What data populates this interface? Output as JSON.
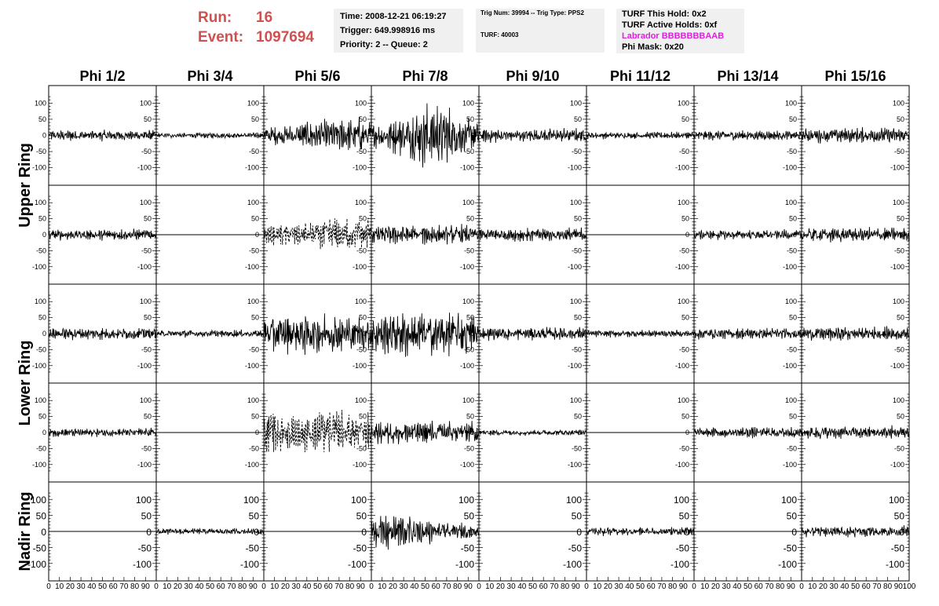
{
  "header": {
    "run_label": "Run:",
    "run_value": "16",
    "event_label": "Event:",
    "event_value": "1097694",
    "time": "Time: 2008-12-21 06:19:27",
    "trigger": "Trigger: 649.998916 ms",
    "priority": "Priority: 2 -- Queue: 2",
    "trig_num": "Trig Num: 39994 -- Trig Type: PPS2",
    "turf": "TURF: 40003",
    "turf_hold": "TURF This Hold: 0x2",
    "turf_active": "TURF Active Holds: 0xf",
    "labrador": "Labrador BBBBBBBAAB",
    "phi_mask": "Phi Mask: 0x20"
  },
  "colors": {
    "run_text": "#d05050",
    "labrador_text": "#e020e0",
    "trace": "#000000",
    "info_box_bg": "#f0f0f0"
  },
  "chart_data": {
    "type": "line",
    "description_columns": [
      "Phi 1/2",
      "Phi 3/4",
      "Phi 5/6",
      "Phi 7/8",
      "Phi 9/10",
      "Phi 11/12",
      "Phi 13/14",
      "Phi 15/16"
    ],
    "rows": [
      "Upper Ring",
      "",
      "Lower Ring",
      "",
      "Nadir Ring"
    ],
    "xlim": [
      0,
      100
    ],
    "ylim": [
      -130,
      130
    ],
    "x_ticks": [
      "0",
      "10",
      "20",
      "30",
      "40",
      "50",
      "60",
      "70",
      "80",
      "90",
      "100"
    ],
    "y_ticks": [
      "100",
      "50",
      "0",
      "-50",
      "-100"
    ],
    "amplitude": [
      [
        18,
        9,
        60,
        90,
        22,
        11,
        16,
        25
      ],
      [
        18,
        0,
        62,
        32,
        22,
        0,
        16,
        25
      ],
      [
        20,
        12,
        65,
        75,
        22,
        12,
        18,
        22
      ],
      [
        14,
        0,
        70,
        38,
        10,
        0,
        18,
        22
      ],
      [
        0,
        10,
        0,
        50,
        0,
        14,
        0,
        18
      ]
    ],
    "dashed": [
      [
        false,
        false,
        false,
        false,
        false,
        false,
        false,
        false
      ],
      [
        false,
        false,
        true,
        false,
        false,
        false,
        false,
        false
      ],
      [
        false,
        false,
        false,
        false,
        false,
        false,
        false,
        false
      ],
      [
        false,
        false,
        true,
        false,
        false,
        false,
        false,
        false
      ],
      [
        false,
        false,
        false,
        false,
        false,
        false,
        false,
        false
      ]
    ]
  }
}
